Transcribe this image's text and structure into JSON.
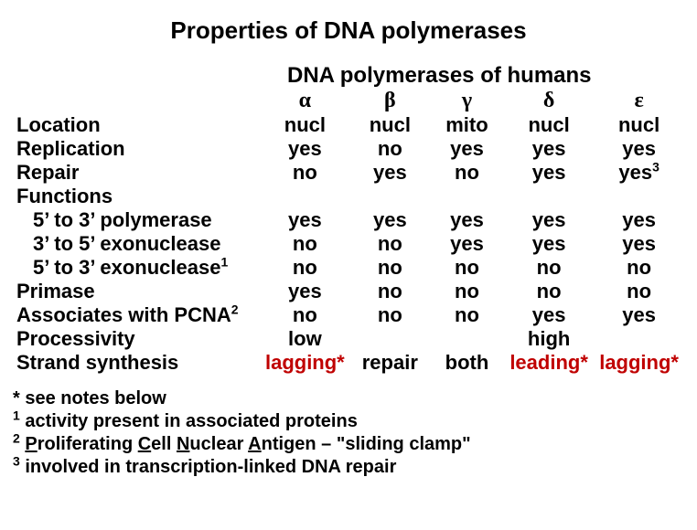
{
  "title": "Properties of DNA polymerases",
  "subtitle": "DNA polymerases of humans",
  "columns_greek": [
    "α",
    "β",
    "γ",
    "δ",
    "ε"
  ],
  "rows": {
    "location": {
      "label": "Location",
      "vals": [
        "nucl",
        "nucl",
        "mito",
        "nucl",
        "nucl"
      ],
      "sups": [
        "",
        "",
        "",
        "",
        ""
      ]
    },
    "replication": {
      "label": "Replication",
      "vals": [
        "yes",
        "no",
        "yes",
        "yes",
        "yes"
      ],
      "sups": [
        "",
        "",
        "",
        "",
        ""
      ]
    },
    "repair": {
      "label": "Repair",
      "vals": [
        "no",
        "yes",
        "no",
        "yes",
        "yes"
      ],
      "sups": [
        "",
        "",
        "",
        "",
        "3"
      ]
    },
    "functions": {
      "label": "Functions"
    },
    "fn_53poly": {
      "label": "5’ to 3’ polymerase",
      "vals": [
        "yes",
        "yes",
        "yes",
        "yes",
        "yes"
      ],
      "sups": [
        "",
        "",
        "",
        "",
        ""
      ]
    },
    "fn_35exo": {
      "label": "3’ to 5’ exonuclease",
      "vals": [
        "no",
        "no",
        "yes",
        "yes",
        "yes"
      ],
      "sups": [
        "",
        "",
        "",
        "",
        ""
      ]
    },
    "fn_53exo": {
      "label": "5’ to 3’ exonuclease",
      "label_sup": "1",
      "vals": [
        "no",
        "no",
        "no",
        "no",
        "no"
      ],
      "sups": [
        "",
        "",
        "",
        "",
        ""
      ]
    },
    "primase": {
      "label": "Primase",
      "vals": [
        "yes",
        "no",
        "no",
        "no",
        "no"
      ],
      "sups": [
        "",
        "",
        "",
        "",
        ""
      ]
    },
    "pcna": {
      "label": "Associates with PCNA",
      "label_sup": "2",
      "vals": [
        "no",
        "no",
        "no",
        "yes",
        "yes"
      ],
      "sups": [
        "",
        "",
        "",
        "",
        ""
      ]
    },
    "processivity": {
      "label": "Processivity",
      "vals": [
        "low",
        "",
        "",
        "high",
        ""
      ],
      "sups": [
        "",
        "",
        "",
        "",
        ""
      ]
    },
    "strand": {
      "label": "Strand synthesis",
      "vals": [
        "lagging*",
        "repair",
        "both",
        "leading*",
        "lagging*"
      ],
      "sups": [
        "",
        "",
        "",
        "",
        ""
      ],
      "red_idx": [
        0,
        3,
        4
      ]
    }
  },
  "footnotes": {
    "f0": "* see notes below",
    "f1_sup": "1",
    "f1_text": " activity present in associated proteins",
    "f2_sup": "2",
    "f2_parts": [
      " ",
      "P",
      "roliferating ",
      "C",
      "ell ",
      "N",
      "uclear ",
      "A",
      "ntigen – \"sliding clamp\""
    ],
    "f3_sup": "3",
    "f3_text": " involved in transcription-linked DNA repair"
  },
  "colors": {
    "text": "#000000",
    "highlight": "#c00000",
    "background": "#ffffff"
  }
}
